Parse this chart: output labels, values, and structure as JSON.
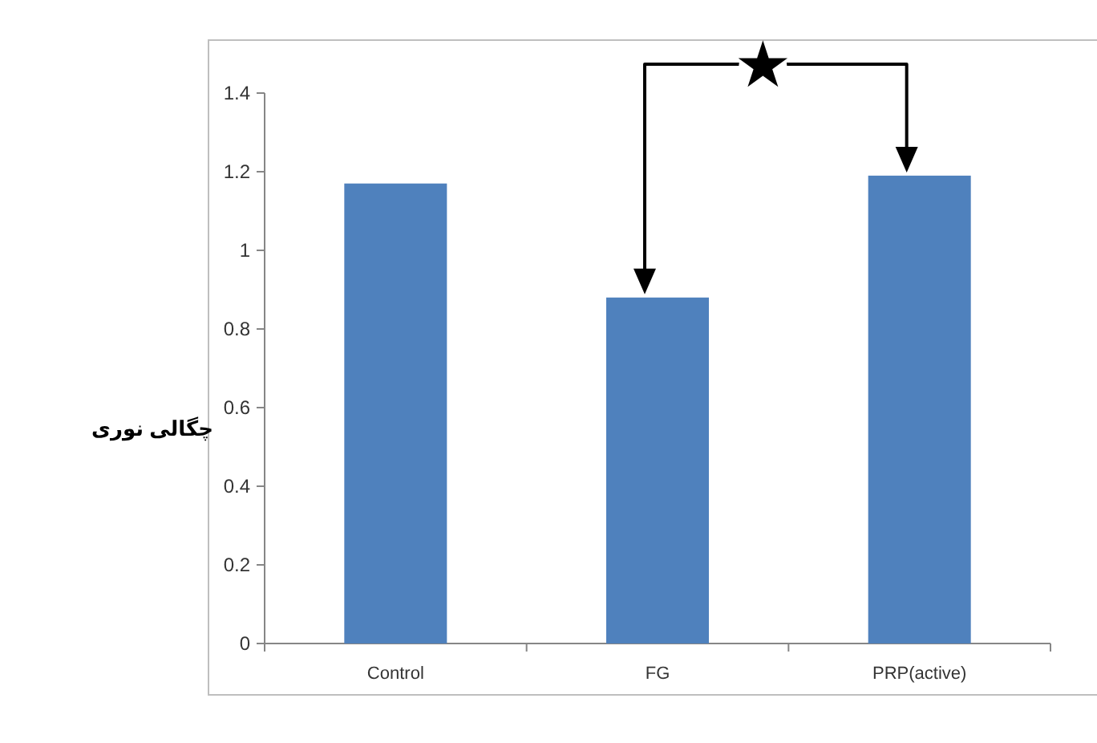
{
  "chart_data": {
    "type": "bar",
    "ylabel": "چگالی نوری",
    "categories": [
      "Control",
      "FG",
      "PRP(active)"
    ],
    "values": [
      1.17,
      0.88,
      1.19
    ],
    "color": "#4f81bd",
    "ylim": [
      0,
      1.4
    ],
    "yticks": [
      0,
      0.2,
      0.4,
      0.6,
      0.8,
      1,
      1.2,
      1.4
    ],
    "grid": false,
    "annotations": [
      "★"
    ]
  }
}
